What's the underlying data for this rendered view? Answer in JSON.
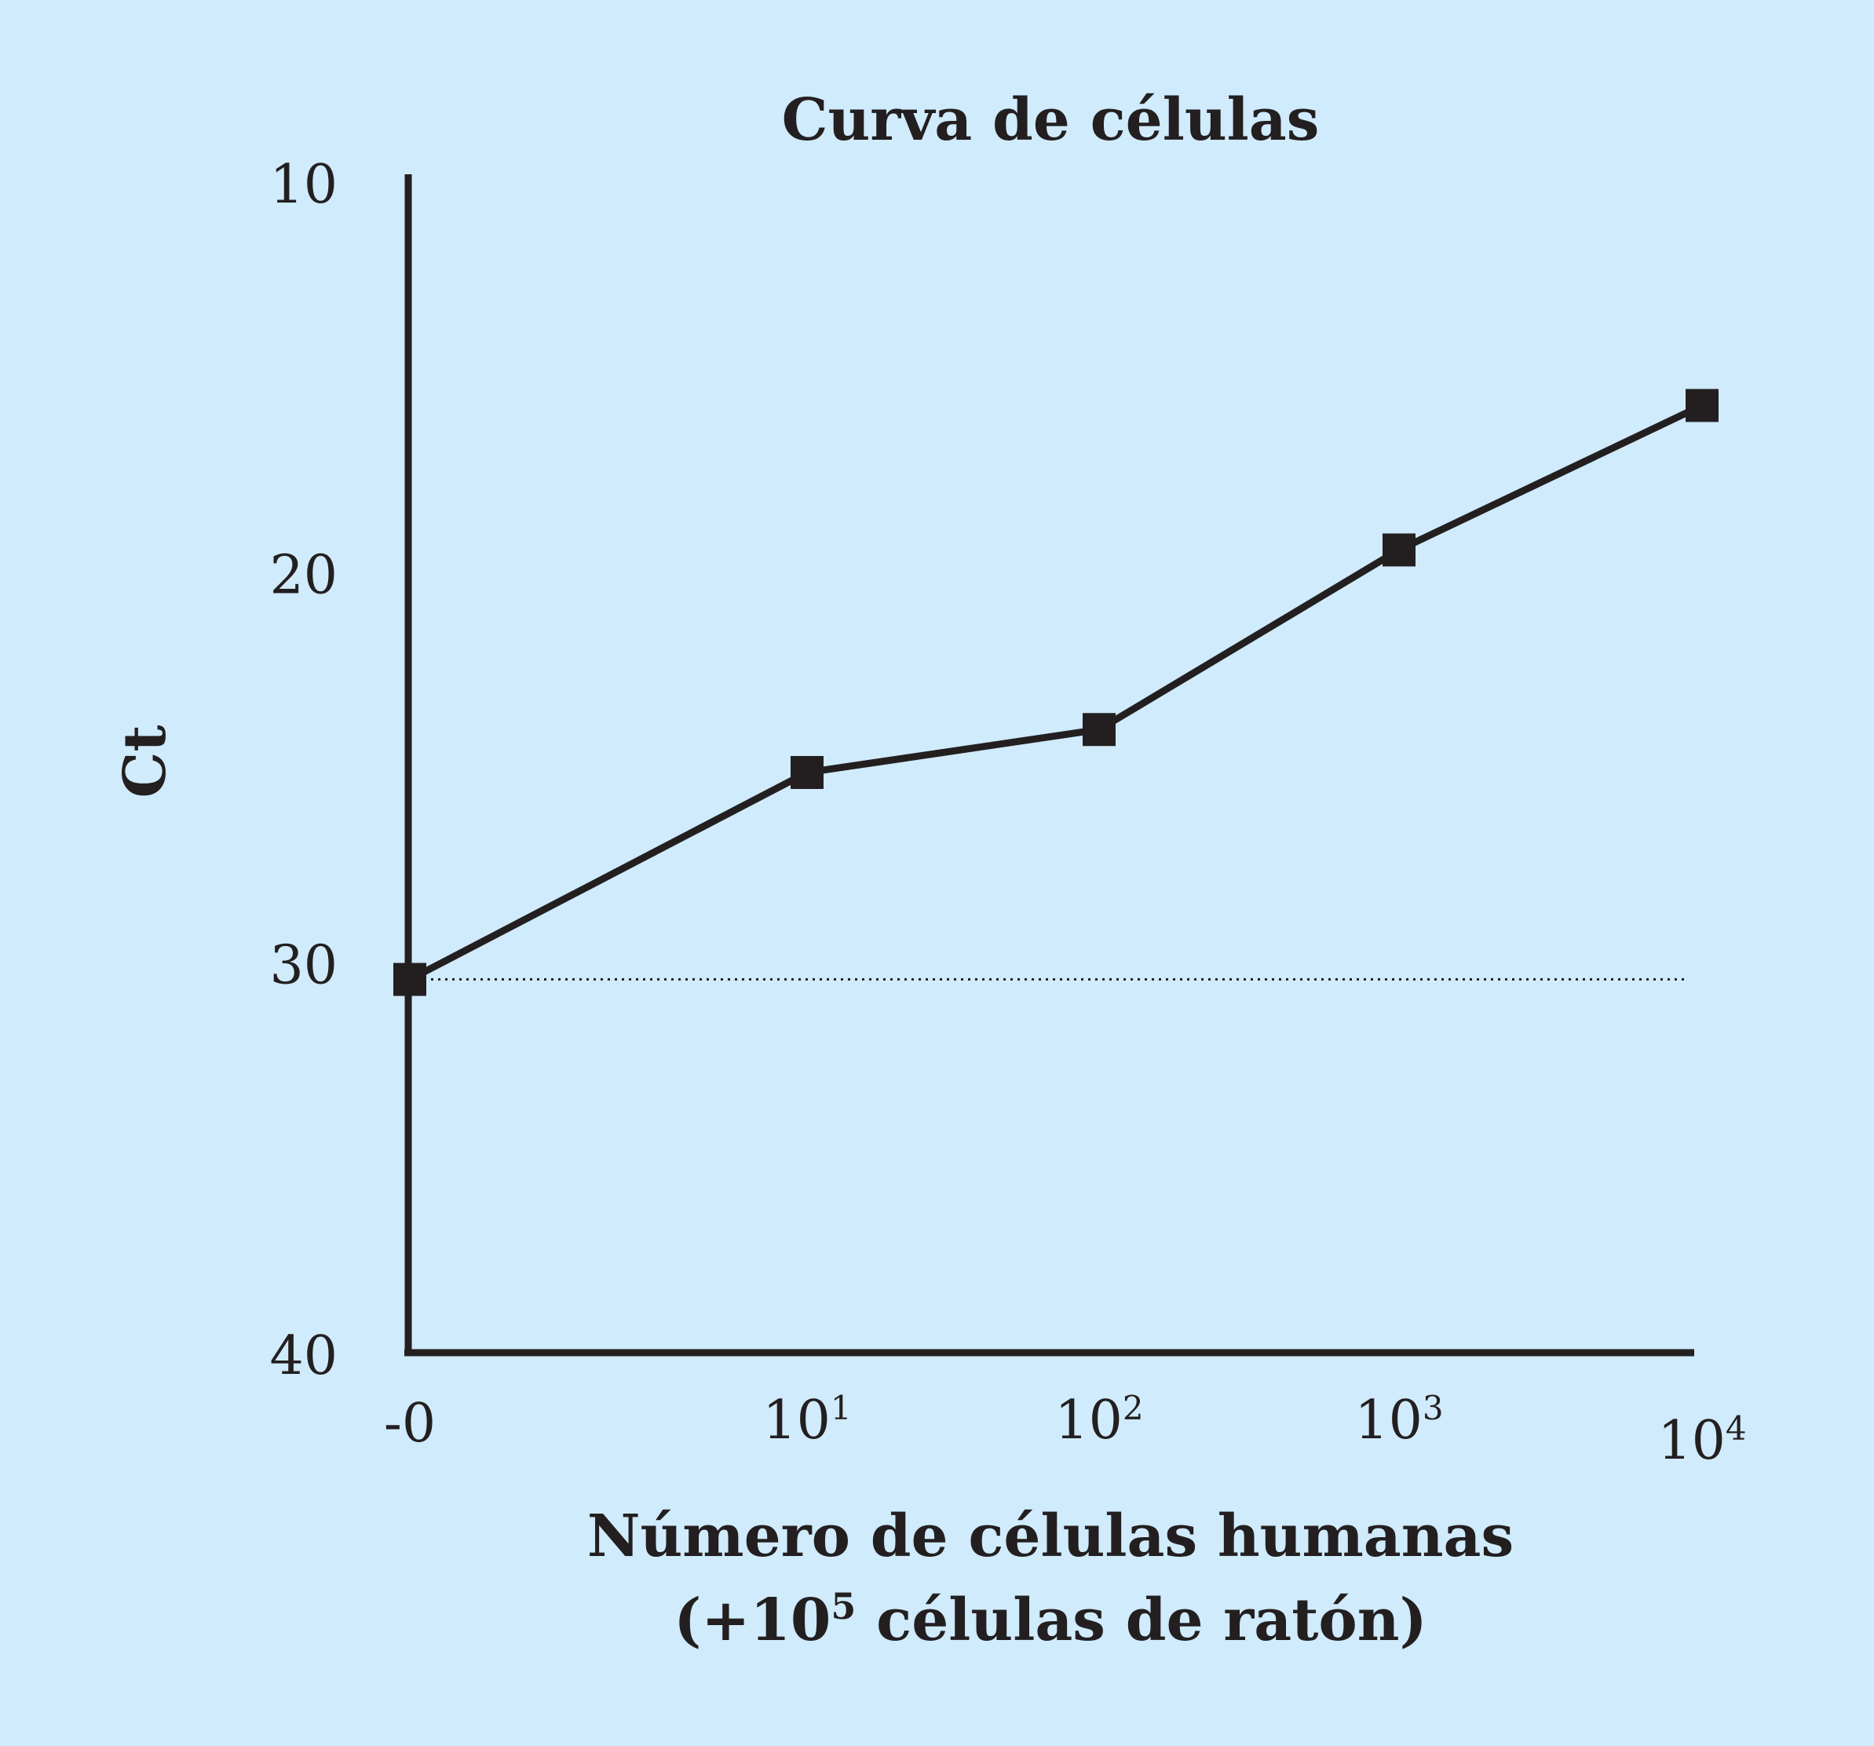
{
  "chart_data": {
    "type": "line",
    "title": "Curva de células",
    "ylabel": "Ct",
    "xlabel": {
      "line1": "Número de células humanas",
      "line2_prefix": "(+10",
      "line2_sup": "5",
      "line2_suffix": " células de ratón)"
    },
    "ylim": [
      10,
      40
    ],
    "y_inverted": true,
    "y_ticks": [
      "10",
      "20",
      "30",
      "40"
    ],
    "x": [
      {
        "base": "-0",
        "exp": ""
      },
      {
        "base": "10",
        "exp": "1"
      },
      {
        "base": "10",
        "exp": "2"
      },
      {
        "base": "10",
        "exp": "3"
      },
      {
        "base": "10",
        "exp": "4"
      }
    ],
    "y": [
      30.4,
      25.1,
      24.0,
      19.4,
      15.7
    ],
    "reference_line": {
      "y": 30.4,
      "style": "dotted"
    },
    "grid": false,
    "colors": {
      "line": "#231f20",
      "background": "#d0ebfb"
    }
  }
}
